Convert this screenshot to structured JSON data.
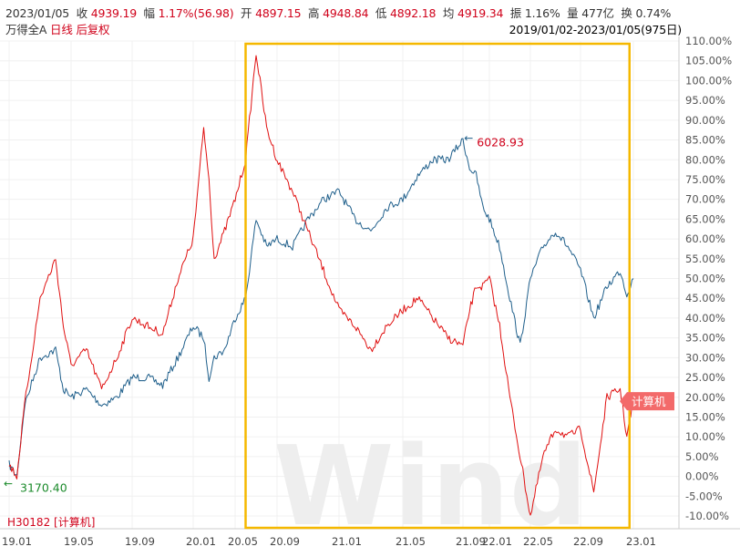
{
  "header": {
    "date": "2023/01/05",
    "close_label": "收",
    "close": "4939.19",
    "change_label": "幅",
    "change": "1.17%(56.98)",
    "open_label": "开",
    "open": "4897.15",
    "high_label": "高",
    "high": "4948.84",
    "low_label": "低",
    "low": "4892.18",
    "avg_label": "均",
    "avg": "4919.34",
    "amp_label": "振",
    "amp": "1.16%",
    "vol_label": "量",
    "vol": "477亿",
    "turnover_label": "换",
    "turnover": "0.74%"
  },
  "subheader": {
    "index_name": "万得全A",
    "period": "日线",
    "adjust": "后复权",
    "range": "2019/01/02-2023/01/05(975日)"
  },
  "watermark": "Wind",
  "colors": {
    "red_series": "#e01010",
    "blue_series": "#1f5f8b",
    "highlight_box": "#f5b800",
    "green_text": "#1a8a2a",
    "badge": "#f36a6a"
  },
  "chart_data": {
    "type": "line",
    "x_ticks": [
      "19.01",
      "19.05",
      "19.09",
      "20.01",
      "20.05",
      "20.09",
      "21.01",
      "21.05",
      "21.09",
      "22.01",
      "22.05",
      "22.09",
      "23.01"
    ],
    "y_ticks": [
      "110.00%",
      "105.00%",
      "100.00%",
      "95.00%",
      "90.00%",
      "85.00%",
      "80.00%",
      "75.00%",
      "70.00%",
      "65.00%",
      "60.00%",
      "55.00%",
      "50.00%",
      "45.00%",
      "40.00%",
      "35.00%",
      "30.00%",
      "25.00%",
      "20.00%",
      "15.00%",
      "10.00%",
      "5.00%",
      "0.00%",
      "-5.00%",
      "-10.00%"
    ],
    "ylim": [
      -12,
      112
    ],
    "series": [
      {
        "name": "H30182 [计算机]",
        "color": "#e01010",
        "points": [
          [
            "19.01",
            3
          ],
          [
            "19.01+",
            0
          ],
          [
            "19.02",
            18
          ],
          [
            "19.03",
            45
          ],
          [
            "19.04",
            55
          ],
          [
            "19.04+",
            38
          ],
          [
            "19.05",
            28
          ],
          [
            "19.06",
            32
          ],
          [
            "19.07",
            22
          ],
          [
            "19.08",
            30
          ],
          [
            "19.09",
            40
          ],
          [
            "19.10",
            38
          ],
          [
            "19.11",
            36
          ],
          [
            "19.12",
            50
          ],
          [
            "20.01",
            60
          ],
          [
            "20.02",
            88
          ],
          [
            "20.02+",
            75
          ],
          [
            "20.03",
            55
          ],
          [
            "20.04",
            62
          ],
          [
            "20.05",
            70
          ],
          [
            "20.06",
            80
          ],
          [
            "20.07",
            107
          ],
          [
            "20.08",
            88
          ],
          [
            "20.09",
            80
          ],
          [
            "20.10",
            72
          ],
          [
            "20.11",
            62
          ],
          [
            "20.12",
            52
          ],
          [
            "21.01",
            42
          ],
          [
            "21.02",
            38
          ],
          [
            "21.03",
            32
          ],
          [
            "21.04",
            38
          ],
          [
            "21.05",
            42
          ],
          [
            "21.06",
            45
          ],
          [
            "21.07",
            40
          ],
          [
            "21.08",
            35
          ],
          [
            "21.09",
            33
          ],
          [
            "21.10",
            42
          ],
          [
            "21.11",
            48
          ],
          [
            "21.12",
            48
          ],
          [
            "22.01",
            50
          ],
          [
            "22.02",
            38
          ],
          [
            "22.03",
            20
          ],
          [
            "22.04",
            5
          ],
          [
            "22.05",
            -10
          ],
          [
            "22.06",
            5
          ],
          [
            "22.07",
            12
          ],
          [
            "22.08",
            10
          ],
          [
            "22.09",
            12
          ],
          [
            "22.10",
            -4
          ],
          [
            "22.11",
            20
          ],
          [
            "22.12",
            22
          ],
          [
            "22.12+",
            10
          ],
          [
            "23.01",
            19
          ]
        ]
      },
      {
        "name": "万得全A",
        "color": "#1f5f8b",
        "points": [
          [
            "19.01",
            3
          ],
          [
            "19.01+",
            0
          ],
          [
            "19.02",
            18
          ],
          [
            "19.03",
            30
          ],
          [
            "19.04",
            32
          ],
          [
            "19.04+",
            22
          ],
          [
            "19.05",
            20
          ],
          [
            "19.06",
            22
          ],
          [
            "19.07",
            18
          ],
          [
            "19.08",
            20
          ],
          [
            "19.09",
            25
          ],
          [
            "19.10",
            25
          ],
          [
            "19.11",
            23
          ],
          [
            "19.12",
            30
          ],
          [
            "20.01",
            38
          ],
          [
            "20.02",
            35
          ],
          [
            "20.02+",
            25
          ],
          [
            "20.03",
            30
          ],
          [
            "20.04",
            32
          ],
          [
            "20.05",
            40
          ],
          [
            "20.06",
            45
          ],
          [
            "20.07",
            65
          ],
          [
            "20.08",
            58
          ],
          [
            "20.09",
            60
          ],
          [
            "20.10",
            58
          ],
          [
            "20.11",
            65
          ],
          [
            "20.12",
            70
          ],
          [
            "21.01",
            72
          ],
          [
            "21.02",
            65
          ],
          [
            "21.03",
            62
          ],
          [
            "21.04",
            68
          ],
          [
            "21.05",
            70
          ],
          [
            "21.06",
            76
          ],
          [
            "21.07",
            80
          ],
          [
            "21.08",
            80
          ],
          [
            "21.09",
            85
          ],
          [
            "21.10",
            78
          ],
          [
            "21.11",
            76
          ],
          [
            "21.12",
            68
          ],
          [
            "22.01",
            65
          ],
          [
            "22.02",
            58
          ],
          [
            "22.03",
            45
          ],
          [
            "22.04",
            33
          ],
          [
            "22.05",
            50
          ],
          [
            "22.06",
            58
          ],
          [
            "22.07",
            62
          ],
          [
            "22.08",
            58
          ],
          [
            "22.09",
            52
          ],
          [
            "22.10",
            40
          ],
          [
            "22.11",
            48
          ],
          [
            "22.12",
            52
          ],
          [
            "22.12+",
            46
          ],
          [
            "23.01",
            50
          ]
        ]
      }
    ],
    "annotations": [
      {
        "text": "6028.93",
        "series": "万得全A",
        "x": "21.10",
        "y": 85
      },
      {
        "text": "3170.40",
        "series": "万得全A",
        "x": "19.01",
        "y": 0
      }
    ],
    "current_label": "计算机",
    "legend": "H30182 [计算机]",
    "highlight_range": [
      "20.06",
      "22.12+"
    ]
  }
}
